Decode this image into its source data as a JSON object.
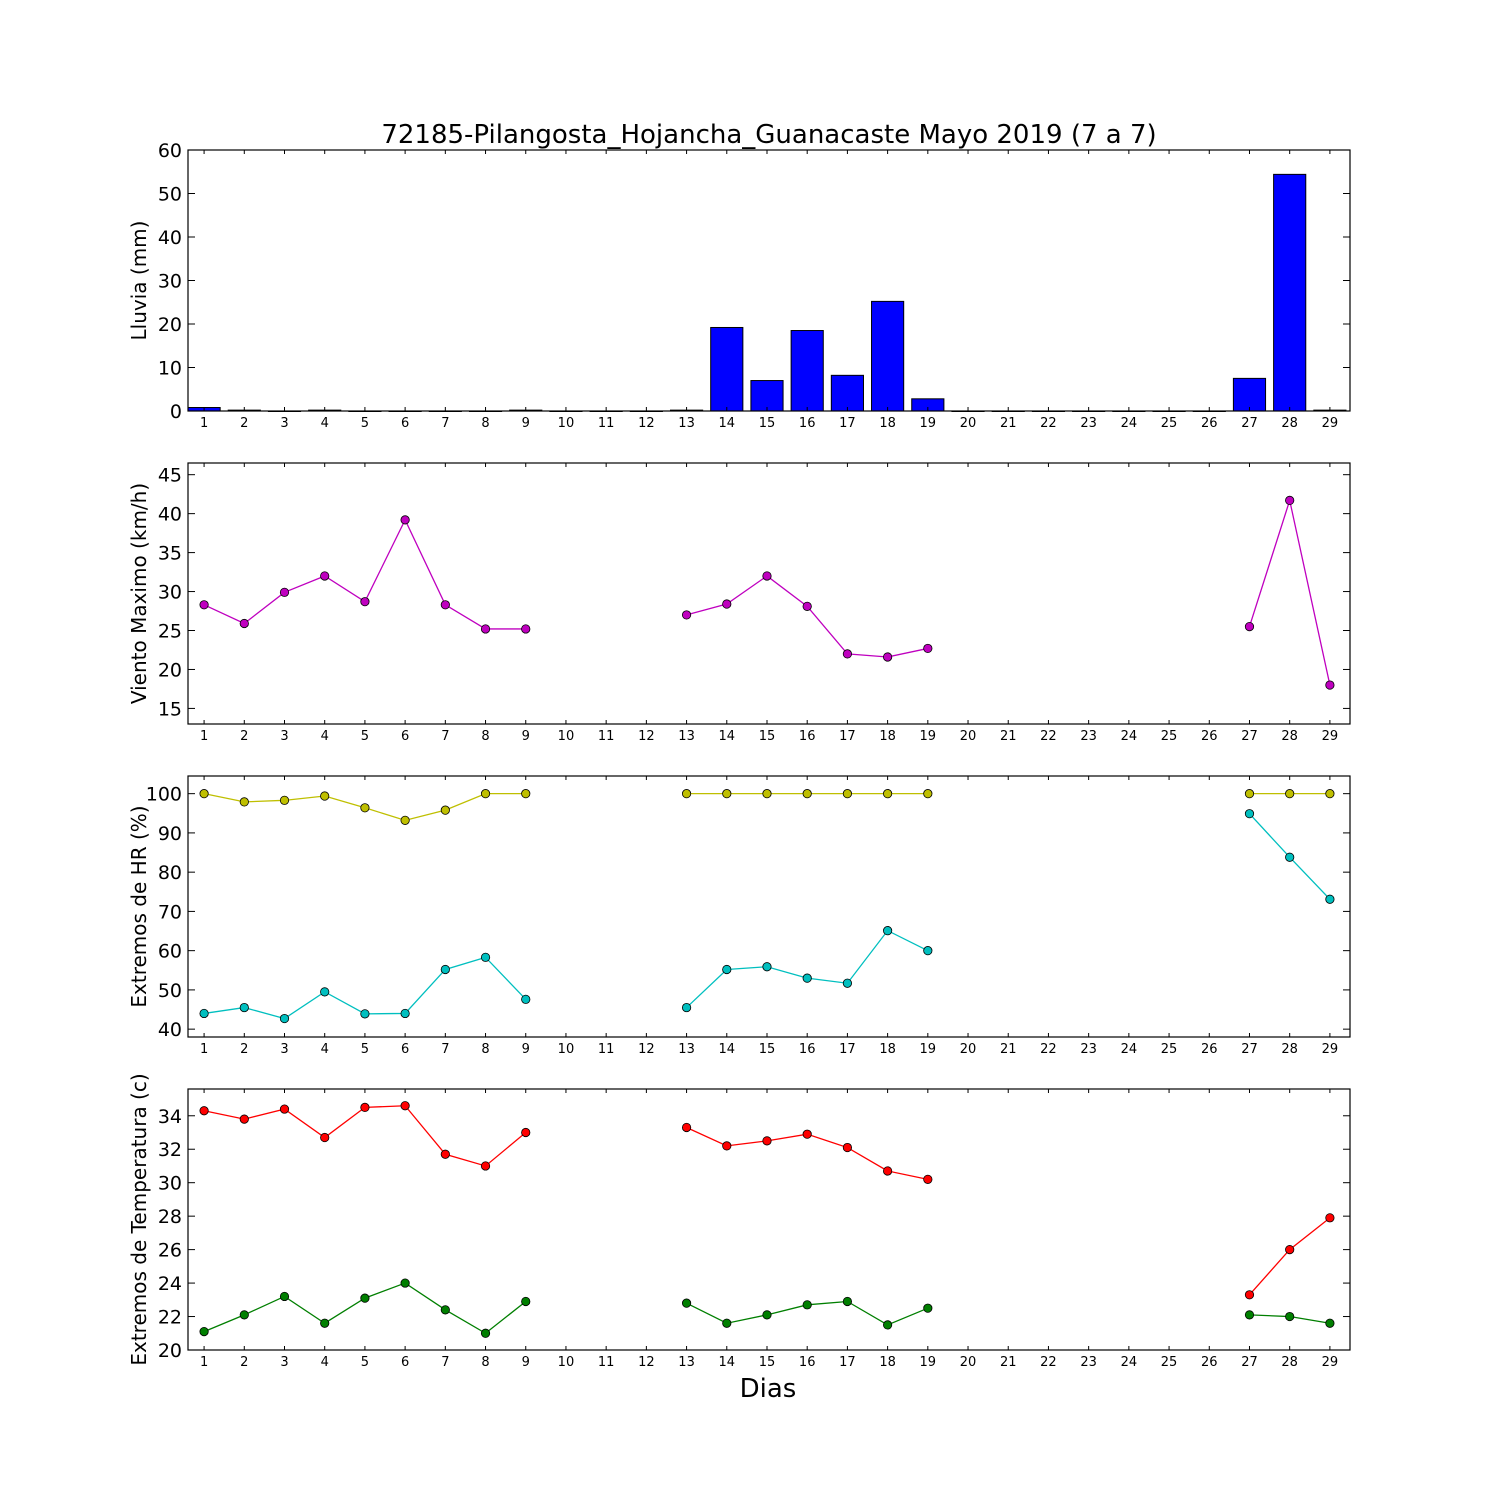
{
  "figure": {
    "title": "72185-Pilangosta_Hojancha_Guanacaste Mayo 2019  (7 a 7)",
    "xlabel": "Dias"
  },
  "chart_data": [
    {
      "type": "bar",
      "ylabel": "Lluvia (mm)",
      "xlim": [
        0.6,
        29.5
      ],
      "ylim": [
        0,
        60
      ],
      "yticks": [
        0,
        10,
        20,
        30,
        40,
        50,
        60
      ],
      "xticks": [
        1,
        2,
        3,
        4,
        5,
        6,
        7,
        8,
        9,
        10,
        11,
        12,
        13,
        14,
        15,
        16,
        17,
        18,
        19,
        20,
        21,
        22,
        23,
        24,
        25,
        26,
        27,
        28,
        29
      ],
      "grid": false,
      "series": [
        {
          "color": "#0000ff",
          "x": [
            1,
            2,
            3,
            4,
            5,
            6,
            7,
            8,
            9,
            10,
            11,
            12,
            13,
            14,
            15,
            16,
            17,
            18,
            19,
            20,
            21,
            22,
            23,
            24,
            25,
            26,
            27,
            28,
            29
          ],
          "values": [
            0.8,
            0.2,
            0,
            0.2,
            0,
            0,
            0,
            0,
            0.2,
            0,
            0,
            0,
            0.2,
            19.2,
            7,
            18.5,
            8.2,
            25.2,
            2.8,
            0,
            0,
            0,
            0,
            0,
            0,
            0,
            7.5,
            54.4,
            0.2
          ]
        }
      ]
    },
    {
      "type": "line",
      "ylabel": "Viento Maximo (km/h)",
      "xlim": [
        0.6,
        29.5
      ],
      "ylim": [
        13,
        46.5
      ],
      "yticks": [
        15,
        20,
        25,
        30,
        35,
        40,
        45
      ],
      "xticks": [
        1,
        2,
        3,
        4,
        5,
        6,
        7,
        8,
        9,
        10,
        11,
        12,
        13,
        14,
        15,
        16,
        17,
        18,
        19,
        20,
        21,
        22,
        23,
        24,
        25,
        26,
        27,
        28,
        29
      ],
      "grid": false,
      "series": [
        {
          "color": "#bf00bf",
          "x": [
            1,
            2,
            3,
            4,
            5,
            6,
            7,
            8,
            9,
            13,
            14,
            15,
            16,
            17,
            18,
            19,
            27,
            28,
            29
          ],
          "values": [
            28.3,
            25.9,
            29.9,
            32,
            28.7,
            39.2,
            28.3,
            25.2,
            25.2,
            27,
            28.4,
            32,
            28.1,
            22,
            21.6,
            22.7,
            25.5,
            41.7,
            18
          ]
        }
      ]
    },
    {
      "type": "line",
      "ylabel": "Extremos de HR (%)",
      "xlim": [
        0.6,
        29.5
      ],
      "ylim": [
        38,
        104.5
      ],
      "yticks": [
        40,
        50,
        60,
        70,
        80,
        90,
        100
      ],
      "xticks": [
        1,
        2,
        3,
        4,
        5,
        6,
        7,
        8,
        9,
        10,
        11,
        12,
        13,
        14,
        15,
        16,
        17,
        18,
        19,
        20,
        21,
        22,
        23,
        24,
        25,
        26,
        27,
        28,
        29
      ],
      "grid": false,
      "series": [
        {
          "color": "#bfbf00",
          "x": [
            1,
            2,
            3,
            4,
            5,
            6,
            7,
            8,
            9,
            13,
            14,
            15,
            16,
            17,
            18,
            19,
            27,
            28,
            29
          ],
          "values": [
            100,
            97.9,
            98.3,
            99.4,
            96.4,
            93.2,
            95.8,
            100,
            100,
            100,
            100,
            100,
            100,
            100,
            100,
            100,
            100,
            100,
            100
          ]
        },
        {
          "color": "#00bfbf",
          "x": [
            1,
            2,
            3,
            4,
            5,
            6,
            7,
            8,
            9,
            13,
            14,
            15,
            16,
            17,
            18,
            19,
            27,
            28,
            29
          ],
          "values": [
            44,
            45.5,
            42.7,
            49.5,
            43.9,
            44,
            55.2,
            58.3,
            47.6,
            45.5,
            55.2,
            55.9,
            53,
            51.7,
            65.1,
            60,
            94.9,
            83.8,
            73.1
          ]
        }
      ]
    },
    {
      "type": "line",
      "ylabel": "Extremos de Temperatura (c)",
      "xlim": [
        0.6,
        29.5
      ],
      "ylim": [
        20,
        35.6
      ],
      "yticks": [
        20,
        22,
        24,
        26,
        28,
        30,
        32,
        34
      ],
      "xticks": [
        1,
        2,
        3,
        4,
        5,
        6,
        7,
        8,
        9,
        10,
        11,
        12,
        13,
        14,
        15,
        16,
        17,
        18,
        19,
        20,
        21,
        22,
        23,
        24,
        25,
        26,
        27,
        28,
        29
      ],
      "grid": false,
      "series": [
        {
          "color": "#ff0000",
          "x": [
            1,
            2,
            3,
            4,
            5,
            6,
            7,
            8,
            9,
            13,
            14,
            15,
            16,
            17,
            18,
            19,
            27,
            28,
            29
          ],
          "values": [
            34.3,
            33.8,
            34.4,
            32.7,
            34.5,
            34.6,
            31.7,
            31,
            33,
            33.3,
            32.2,
            32.5,
            32.9,
            32.1,
            30.7,
            30.2,
            23.3,
            26,
            27.9
          ]
        },
        {
          "color": "#007f00",
          "x": [
            1,
            2,
            3,
            4,
            5,
            6,
            7,
            8,
            9,
            13,
            14,
            15,
            16,
            17,
            18,
            19,
            27,
            28,
            29
          ],
          "values": [
            21.1,
            22.1,
            23.2,
            21.6,
            23.1,
            24,
            22.4,
            21,
            22.9,
            22.8,
            21.6,
            22.1,
            22.7,
            22.9,
            21.5,
            22.5,
            22.1,
            22,
            21.6
          ]
        }
      ]
    }
  ]
}
